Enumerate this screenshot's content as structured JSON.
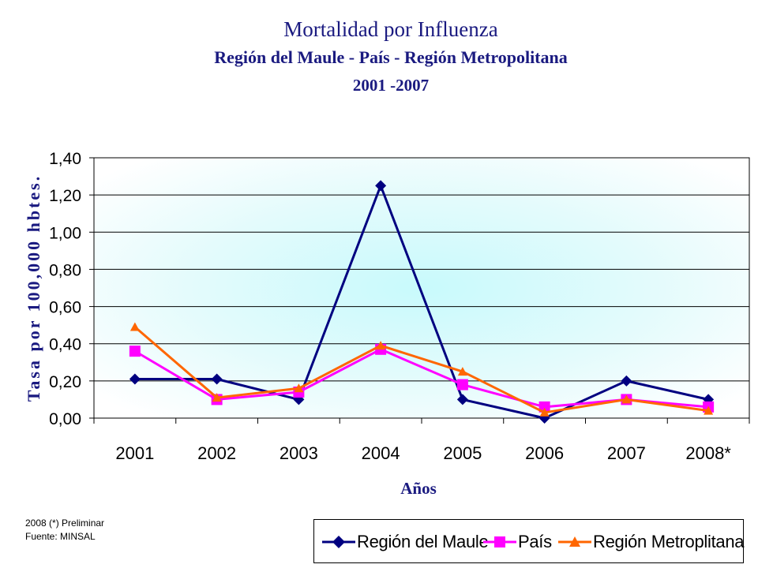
{
  "chart_data": {
    "type": "line",
    "title": "Mortalidad por Influenza",
    "subtitle": "Región del Maule - País - Región Metropolitana",
    "period": "2001 -2007",
    "xlabel": "Años",
    "ylabel": "Tasa por 100,000 hbtes.",
    "categories": [
      "2001",
      "2002",
      "2003",
      "2004",
      "2005",
      "2006",
      "2007",
      "2008*"
    ],
    "yticks": [
      "0,00",
      "0,20",
      "0,40",
      "0,60",
      "0,80",
      "1,00",
      "1,20",
      "1,40"
    ],
    "ylim": [
      0,
      1.4
    ],
    "grid": true,
    "legend_position": "bottom-right",
    "series": [
      {
        "name": "Región del Maule",
        "color": "#000080",
        "marker": "diamond",
        "values": [
          0.21,
          0.21,
          0.1,
          1.25,
          0.1,
          0.0,
          0.2,
          0.1
        ]
      },
      {
        "name": "País",
        "color": "#ff00ff",
        "marker": "square",
        "values": [
          0.36,
          0.1,
          0.14,
          0.37,
          0.18,
          0.06,
          0.1,
          0.06
        ]
      },
      {
        "name": "Región Metroplitana",
        "color": "#ff6600",
        "marker": "triangle",
        "values": [
          0.49,
          0.11,
          0.16,
          0.39,
          0.25,
          0.03,
          0.1,
          0.04
        ]
      }
    ]
  },
  "notes": {
    "preliminary": "2008 (*) Preliminar",
    "source": "Fuente: MINSAL"
  }
}
